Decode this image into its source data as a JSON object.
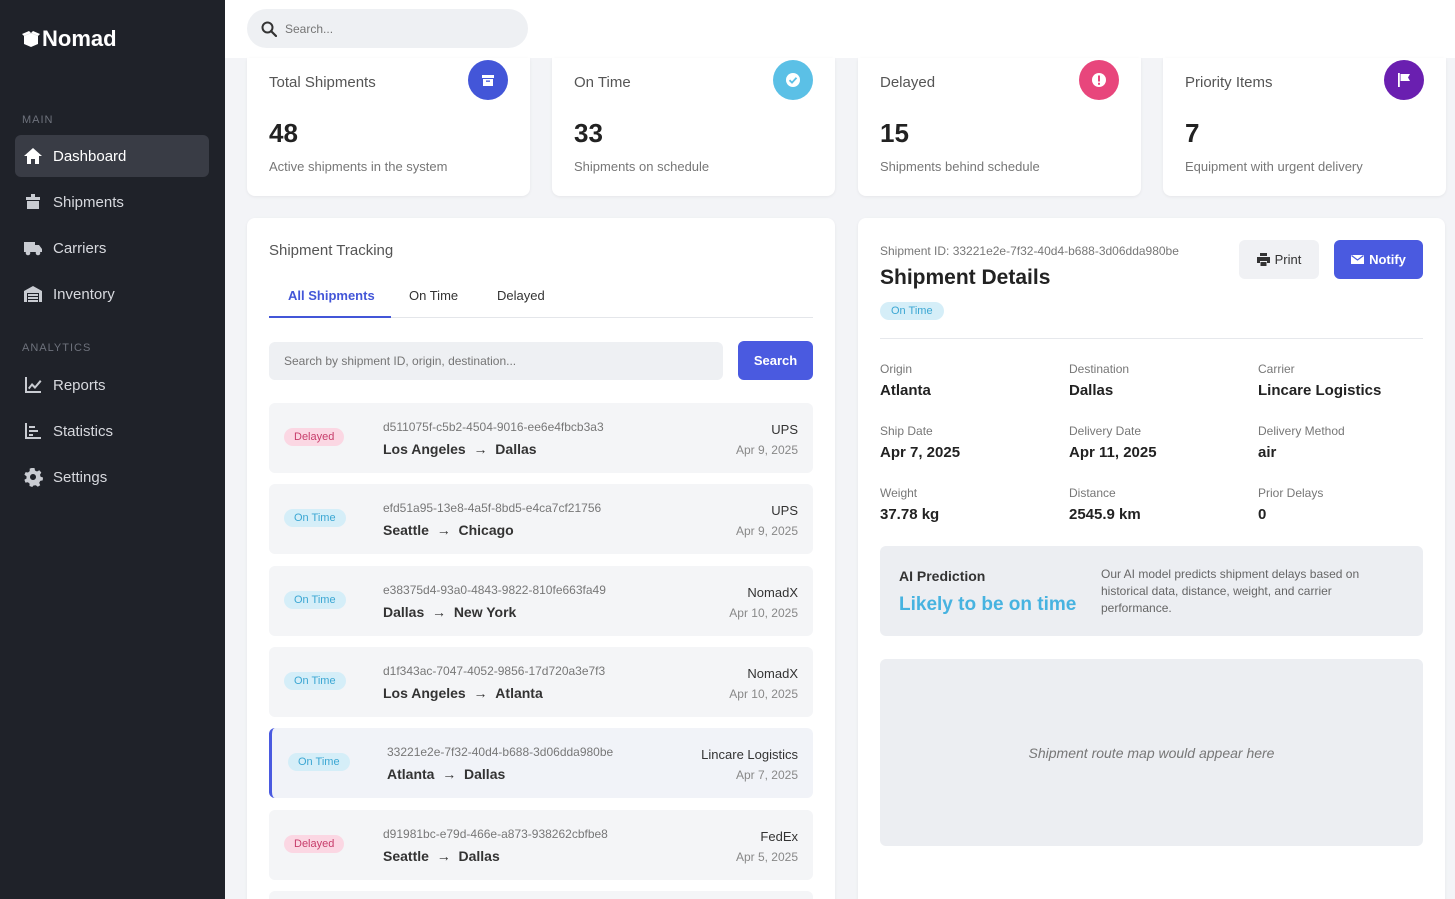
{
  "brand": {
    "name": "Nomad"
  },
  "sidebar": {
    "main_label": "MAIN",
    "analytics_label": "ANALYTICS",
    "main_items": [
      {
        "label": "Dashboard",
        "icon": "home-icon",
        "active": true
      },
      {
        "label": "Shipments",
        "icon": "box-icon"
      },
      {
        "label": "Carriers",
        "icon": "truck-icon"
      },
      {
        "label": "Inventory",
        "icon": "warehouse-icon"
      }
    ],
    "analytics_items": [
      {
        "label": "Reports",
        "icon": "chart-line-icon"
      },
      {
        "label": "Statistics",
        "icon": "chart-list-icon"
      },
      {
        "label": "Settings",
        "icon": "gear-icon"
      }
    ]
  },
  "topbar": {
    "search_placeholder": "Search..."
  },
  "stats": [
    {
      "title": "Total Shipments",
      "value": "48",
      "desc": "Active shipments in the system",
      "color": "#4356d8",
      "icon": "box-icon"
    },
    {
      "title": "On Time",
      "value": "33",
      "desc": "Shipments on schedule",
      "color": "#5bc0e6",
      "icon": "check-icon"
    },
    {
      "title": "Delayed",
      "value": "15",
      "desc": "Shipments behind schedule",
      "color": "#e8467c",
      "icon": "alert-icon"
    },
    {
      "title": "Priority Items",
      "value": "7",
      "desc": "Equipment with urgent delivery",
      "color": "#6a1fb0",
      "icon": "flag-icon"
    }
  ],
  "tracking": {
    "title": "Shipment Tracking",
    "tabs": [
      "All Shipments",
      "On Time",
      "Delayed"
    ],
    "search_placeholder": "Search by shipment ID, origin, destination...",
    "search_button": "Search",
    "rows": [
      {
        "status": "Delayed",
        "id": "d511075f-c5b2-4504-9016-ee6e4fbcb3a3",
        "origin": "Los Angeles",
        "destination": "Dallas",
        "carrier": "UPS",
        "date": "Apr 9, 2025"
      },
      {
        "status": "On Time",
        "id": "efd51a95-13e8-4a5f-8bd5-e4ca7cf21756",
        "origin": "Seattle",
        "destination": "Chicago",
        "carrier": "UPS",
        "date": "Apr 9, 2025"
      },
      {
        "status": "On Time",
        "id": "e38375d4-93a0-4843-9822-810fe663fa49",
        "origin": "Dallas",
        "destination": "New York",
        "carrier": "NomadX",
        "date": "Apr 10, 2025"
      },
      {
        "status": "On Time",
        "id": "d1f343ac-7047-4052-9856-17d720a3e7f3",
        "origin": "Los Angeles",
        "destination": "Atlanta",
        "carrier": "NomadX",
        "date": "Apr 10, 2025"
      },
      {
        "status": "On Time",
        "id": "33221e2e-7f32-40d4-b688-3d06dda980be",
        "origin": "Atlanta",
        "destination": "Dallas",
        "carrier": "Lincare Logistics",
        "date": "Apr 7, 2025",
        "selected": true
      },
      {
        "status": "Delayed",
        "id": "d91981bc-e79d-466e-a873-938262cbfbe8",
        "origin": "Seattle",
        "destination": "Dallas",
        "carrier": "FedEx",
        "date": "Apr 5, 2025"
      }
    ],
    "arrow": "→"
  },
  "details": {
    "id_line": "Shipment ID: 33221e2e-7f32-40d4-b688-3d06dda980be",
    "title": "Shipment Details",
    "status": "On Time",
    "print_label": "Print",
    "notify_label": "Notify",
    "fields": [
      {
        "label": "Origin",
        "value": "Atlanta"
      },
      {
        "label": "Destination",
        "value": "Dallas"
      },
      {
        "label": "Carrier",
        "value": "Lincare Logistics"
      },
      {
        "label": "Ship Date",
        "value": "Apr 7, 2025"
      },
      {
        "label": "Delivery Date",
        "value": "Apr 11, 2025"
      },
      {
        "label": "Delivery Method",
        "value": "air"
      },
      {
        "label": "Weight",
        "value": "37.78 kg"
      },
      {
        "label": "Distance",
        "value": "2545.9 km"
      },
      {
        "label": "Prior Delays",
        "value": "0"
      }
    ],
    "ai": {
      "label": "AI Prediction",
      "prediction": "Likely to be on time",
      "note": "Our AI model predicts shipment delays based on historical data, distance, weight, and carrier performance."
    },
    "map_placeholder": "Shipment route map would appear here"
  }
}
